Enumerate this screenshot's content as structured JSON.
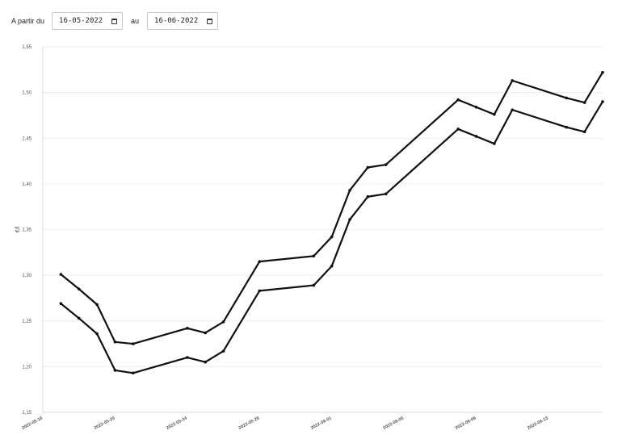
{
  "controls": {
    "from_label": "A partir du",
    "from_date": "16-05-2022",
    "to_label": "au",
    "to_date": "16-06-2022"
  },
  "chart_data": {
    "type": "line",
    "ylabel": "€/l",
    "ylim": [
      1.15,
      1.55
    ],
    "y_ticks": [
      "1,15",
      "1,20",
      "1,25",
      "1,30",
      "1,35",
      "1,40",
      "1,45",
      "1,50",
      "1,55"
    ],
    "xlim": [
      "2022-05-16",
      "2022-06-16"
    ],
    "x_ticks": [
      "2022-05-16",
      "2022-05-20",
      "2022-05-24",
      "2022-05-28",
      "2022-06-01",
      "2022-06-05",
      "2022-06-09",
      "2022-06-13"
    ],
    "grid": true,
    "line_color": "#111111",
    "series": [
      {
        "points": [
          [
            "2022-05-17",
            1.301
          ],
          [
            "2022-05-18",
            1.285
          ],
          [
            "2022-05-19",
            1.268
          ],
          [
            "2022-05-20",
            1.227
          ],
          [
            "2022-05-21",
            1.225
          ],
          [
            "2022-05-24",
            1.242
          ],
          [
            "2022-05-25",
            1.237
          ],
          [
            "2022-05-26",
            1.249
          ],
          [
            "2022-05-28",
            1.315
          ],
          [
            "2022-05-31",
            1.321
          ],
          [
            "2022-06-01",
            1.342
          ],
          [
            "2022-06-02",
            1.393
          ],
          [
            "2022-06-03",
            1.418
          ],
          [
            "2022-06-04",
            1.421
          ],
          [
            "2022-06-08",
            1.492
          ],
          [
            "2022-06-09",
            1.484
          ],
          [
            "2022-06-10",
            1.476
          ],
          [
            "2022-06-11",
            1.513
          ],
          [
            "2022-06-14",
            1.494
          ],
          [
            "2022-06-15",
            1.489
          ],
          [
            "2022-06-16",
            1.522
          ]
        ]
      },
      {
        "points": [
          [
            "2022-05-17",
            1.269
          ],
          [
            "2022-05-18",
            1.253
          ],
          [
            "2022-05-19",
            1.236
          ],
          [
            "2022-05-20",
            1.196
          ],
          [
            "2022-05-21",
            1.193
          ],
          [
            "2022-05-24",
            1.21
          ],
          [
            "2022-05-25",
            1.205
          ],
          [
            "2022-05-26",
            1.217
          ],
          [
            "2022-05-28",
            1.283
          ],
          [
            "2022-05-31",
            1.289
          ],
          [
            "2022-06-01",
            1.31
          ],
          [
            "2022-06-02",
            1.361
          ],
          [
            "2022-06-03",
            1.386
          ],
          [
            "2022-06-04",
            1.389
          ],
          [
            "2022-06-08",
            1.46
          ],
          [
            "2022-06-09",
            1.452
          ],
          [
            "2022-06-10",
            1.444
          ],
          [
            "2022-06-11",
            1.481
          ],
          [
            "2022-06-14",
            1.462
          ],
          [
            "2022-06-15",
            1.457
          ],
          [
            "2022-06-16",
            1.49
          ]
        ]
      }
    ]
  }
}
